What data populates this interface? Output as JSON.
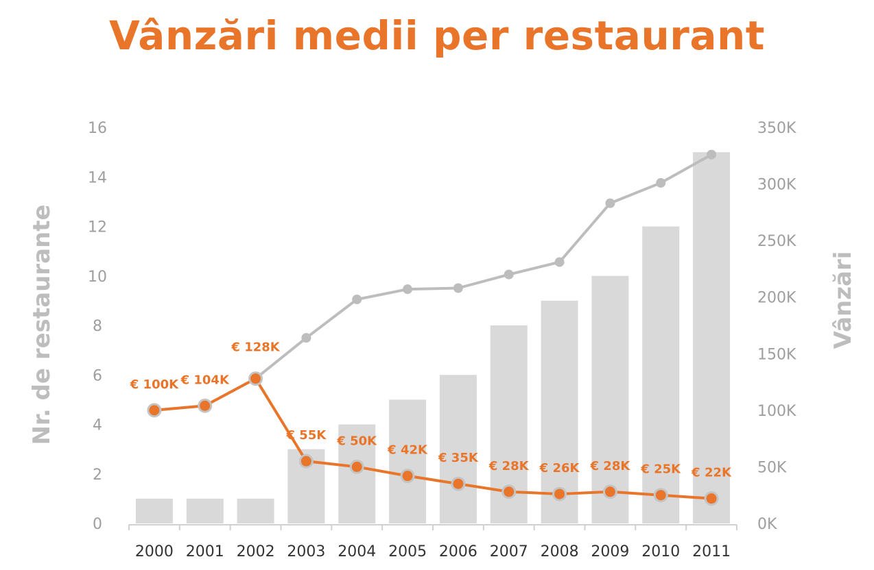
{
  "chart_data": {
    "type": "bar",
    "title": "Vânzări medii per restaurant",
    "categories": [
      "2000",
      "2001",
      "2002",
      "2003",
      "2004",
      "2005",
      "2006",
      "2007",
      "2008",
      "2009",
      "2010",
      "2011"
    ],
    "ylabel_left": "Nr. de restaurante",
    "ylabel_right": "Vânzări",
    "ylim_left": [
      0,
      16
    ],
    "yticks_left": [
      "0",
      "2",
      "4",
      "6",
      "8",
      "10",
      "12",
      "14",
      "16"
    ],
    "ylim_right": [
      0,
      350
    ],
    "yticks_right": [
      "0K",
      "50K",
      "100K",
      "150K",
      "200K",
      "250K",
      "300K",
      "350K"
    ],
    "series": [
      {
        "name": "Nr. de restaurante",
        "type": "bar",
        "axis": "left",
        "values": [
          1,
          1,
          1,
          3,
          4,
          5,
          6,
          8,
          9,
          10,
          12,
          15
        ]
      },
      {
        "name": "Vânzări",
        "type": "line",
        "axis": "right",
        "values": [
          100,
          104,
          128,
          164,
          198,
          207,
          208,
          220,
          231,
          283,
          301,
          326
        ]
      },
      {
        "name": "Vânzări medii per restaurant",
        "type": "line",
        "axis": "right",
        "values": [
          100,
          104,
          128,
          55,
          50,
          42,
          35,
          28,
          26,
          28,
          25,
          22
        ],
        "labels": [
          "€ 100K",
          "€ 104K",
          "€ 128K",
          "€ 55K",
          "€ 50K",
          "€ 42K",
          "€ 35K",
          "€ 28K",
          "€ 26K",
          "€ 28K",
          "€ 25K",
          "€ 22K"
        ]
      }
    ],
    "grid": false,
    "colors": {
      "title": "#e8752a",
      "bars": "#d9d9d9",
      "grey_line": "#bdbdbd",
      "orange_line": "#e8752a",
      "axis_text": "#9e9e9e",
      "axis_label": "#bdbdbd",
      "x_text": "#333333"
    }
  }
}
